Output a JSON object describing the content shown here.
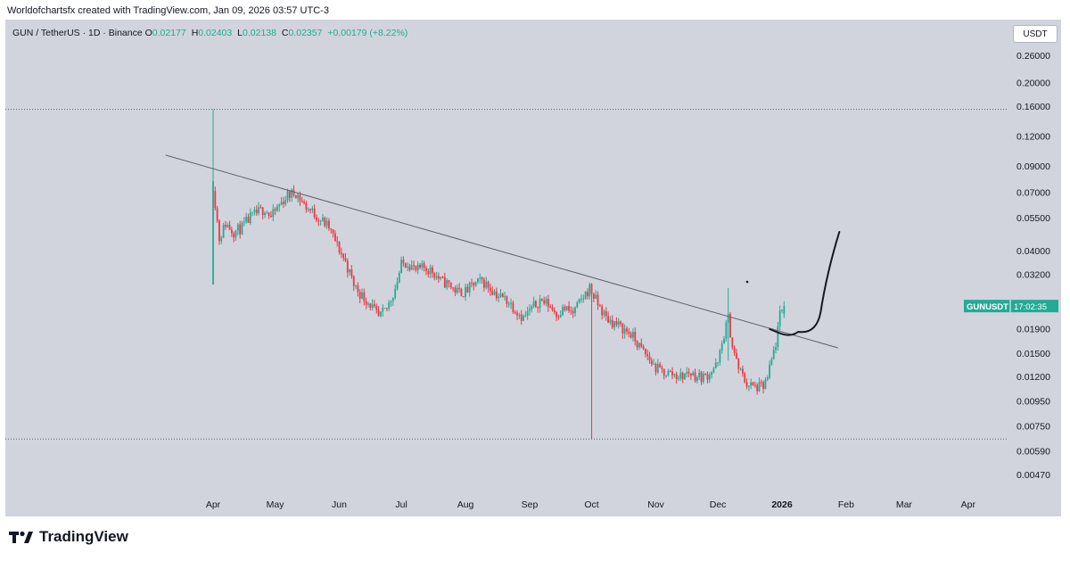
{
  "header": {
    "caption": "Worldofchartsfx created with TradingView.com, Jan 09, 2026 03:57 UTC-3"
  },
  "legend": {
    "symbol": "GUN / TetherUS · 1D · Binance",
    "open_label": "O",
    "open": "0.02177",
    "high_label": "H",
    "high": "0.02403",
    "low_label": "L",
    "low": "0.02138",
    "close_label": "C",
    "close": "0.02357",
    "change": "+0.00179 (+8.22%)"
  },
  "currency_button": "USDT",
  "footer": {
    "brand": "TradingView"
  },
  "colors": {
    "up": "#22ab94",
    "down": "#f23645",
    "background": "#d1d4dc",
    "trendline": "#5d606b",
    "label_bg": "#22ab94"
  },
  "chart_data": {
    "type": "candlestick",
    "scale": "log",
    "symbol": "GUNUSDT",
    "price_label": "GUNUSDT",
    "countdown": "17:02:35",
    "current_price": 0.02357,
    "y_ticks": [
      "0.26000",
      "0.20000",
      "0.16000",
      "0.12000",
      "0.09000",
      "0.07000",
      "0.05500",
      "0.04000",
      "0.03200",
      "0.01900",
      "0.01500",
      "0.01200",
      "0.00950",
      "0.00750",
      "0.00590",
      "0.00470"
    ],
    "x_labels": [
      {
        "label": "Apr",
        "day": 0
      },
      {
        "label": "May",
        "day": 30
      },
      {
        "label": "Jun",
        "day": 61
      },
      {
        "label": "Jul",
        "day": 91
      },
      {
        "label": "Aug",
        "day": 122
      },
      {
        "label": "Sep",
        "day": 153
      },
      {
        "label": "Oct",
        "day": 183
      },
      {
        "label": "Nov",
        "day": 214
      },
      {
        "label": "Dec",
        "day": 244
      },
      {
        "label": "2026",
        "day": 275,
        "bold": true
      },
      {
        "label": "Feb",
        "day": 306
      },
      {
        "label": "Mar",
        "day": 334
      },
      {
        "label": "Apr",
        "day": 365
      }
    ],
    "dotted_levels": [
      0.155,
      0.0066
    ],
    "trendline": [
      {
        "day": -23,
        "price": 0.1
      },
      {
        "day": 302,
        "price": 0.0158
      }
    ],
    "price_path": [
      [
        0,
        0.075
      ],
      [
        3,
        0.045
      ],
      [
        6,
        0.052
      ],
      [
        10,
        0.048
      ],
      [
        14,
        0.05
      ],
      [
        18,
        0.055
      ],
      [
        22,
        0.058
      ],
      [
        25,
        0.06
      ],
      [
        28,
        0.055
      ],
      [
        32,
        0.062
      ],
      [
        36,
        0.068
      ],
      [
        40,
        0.07
      ],
      [
        44,
        0.062
      ],
      [
        48,
        0.058
      ],
      [
        52,
        0.054
      ],
      [
        56,
        0.05
      ],
      [
        60,
        0.042
      ],
      [
        64,
        0.036
      ],
      [
        68,
        0.029
      ],
      [
        72,
        0.026
      ],
      [
        76,
        0.024
      ],
      [
        80,
        0.021
      ],
      [
        84,
        0.023
      ],
      [
        88,
        0.028
      ],
      [
        91,
        0.035
      ],
      [
        94,
        0.036
      ],
      [
        98,
        0.033
      ],
      [
        102,
        0.034
      ],
      [
        106,
        0.033
      ],
      [
        110,
        0.03
      ],
      [
        114,
        0.029
      ],
      [
        118,
        0.027
      ],
      [
        122,
        0.027
      ],
      [
        126,
        0.029
      ],
      [
        130,
        0.03
      ],
      [
        134,
        0.028
      ],
      [
        138,
        0.026
      ],
      [
        142,
        0.025
      ],
      [
        146,
        0.023
      ],
      [
        150,
        0.021
      ],
      [
        154,
        0.023
      ],
      [
        158,
        0.025
      ],
      [
        162,
        0.024
      ],
      [
        166,
        0.022
      ],
      [
        170,
        0.023
      ],
      [
        174,
        0.022
      ],
      [
        178,
        0.025
      ],
      [
        182,
        0.028
      ],
      [
        186,
        0.024
      ],
      [
        190,
        0.021
      ],
      [
        194,
        0.02
      ],
      [
        198,
        0.019
      ],
      [
        202,
        0.018
      ],
      [
        206,
        0.016
      ],
      [
        210,
        0.0145
      ],
      [
        214,
        0.013
      ],
      [
        218,
        0.0125
      ],
      [
        222,
        0.0123
      ],
      [
        226,
        0.012
      ],
      [
        230,
        0.0125
      ],
      [
        234,
        0.012
      ],
      [
        238,
        0.012
      ],
      [
        242,
        0.013
      ],
      [
        244,
        0.0135
      ],
      [
        247,
        0.018
      ],
      [
        249,
        0.021
      ],
      [
        251,
        0.016
      ],
      [
        254,
        0.013
      ],
      [
        258,
        0.0112
      ],
      [
        262,
        0.0108
      ],
      [
        266,
        0.0109
      ],
      [
        268,
        0.0118
      ],
      [
        270,
        0.014
      ],
      [
        272,
        0.0165
      ],
      [
        274,
        0.0215
      ],
      [
        276,
        0.0236
      ]
    ],
    "notable_wicks": [
      {
        "day": 0,
        "high": 0.155,
        "low": 0.029
      },
      {
        "day": 183,
        "high": 0.0255,
        "low": 0.0066
      },
      {
        "day": 249,
        "high": 0.028,
        "low": 0.014
      }
    ],
    "annotation": "hand-drawn projection curve"
  }
}
